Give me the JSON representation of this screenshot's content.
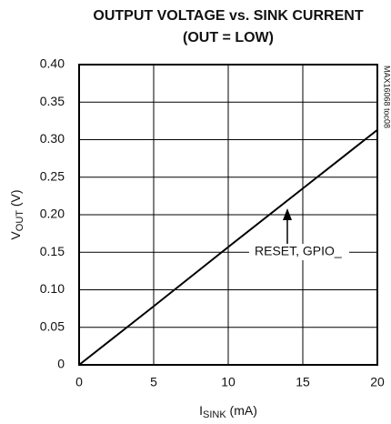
{
  "chart_data": {
    "type": "line",
    "title": "OUTPUT VOLTAGE vs. SINK CURRENT",
    "subtitle": "(OUT = LOW)",
    "y_label": [
      "V",
      "OUT",
      " (V)"
    ],
    "x_label": [
      "I",
      "SINK",
      " (mA)"
    ],
    "side_note": "MAX16068 toc08",
    "annotation": "RESET, GPIO_",
    "x": [
      0,
      5,
      10,
      15,
      20
    ],
    "series": [
      {
        "name": "RESET, GPIO_",
        "color": "#000000",
        "values": [
          0,
          0.078,
          0.157,
          0.235,
          0.313
        ]
      }
    ],
    "xlim": [
      0,
      20
    ],
    "xticks": [
      0,
      5,
      10,
      15,
      20
    ],
    "ylim": [
      0,
      0.4
    ],
    "yticks": [
      0,
      0.05,
      {
        "value": 0.1,
        "label": "0.10"
      },
      0.15,
      {
        "value": 0.2,
        "label": "0.20"
      },
      0.25,
      {
        "value": 0.3,
        "label": "0.30"
      },
      0.35,
      {
        "value": 0.4,
        "label": "0.40"
      }
    ],
    "grid": true
  }
}
